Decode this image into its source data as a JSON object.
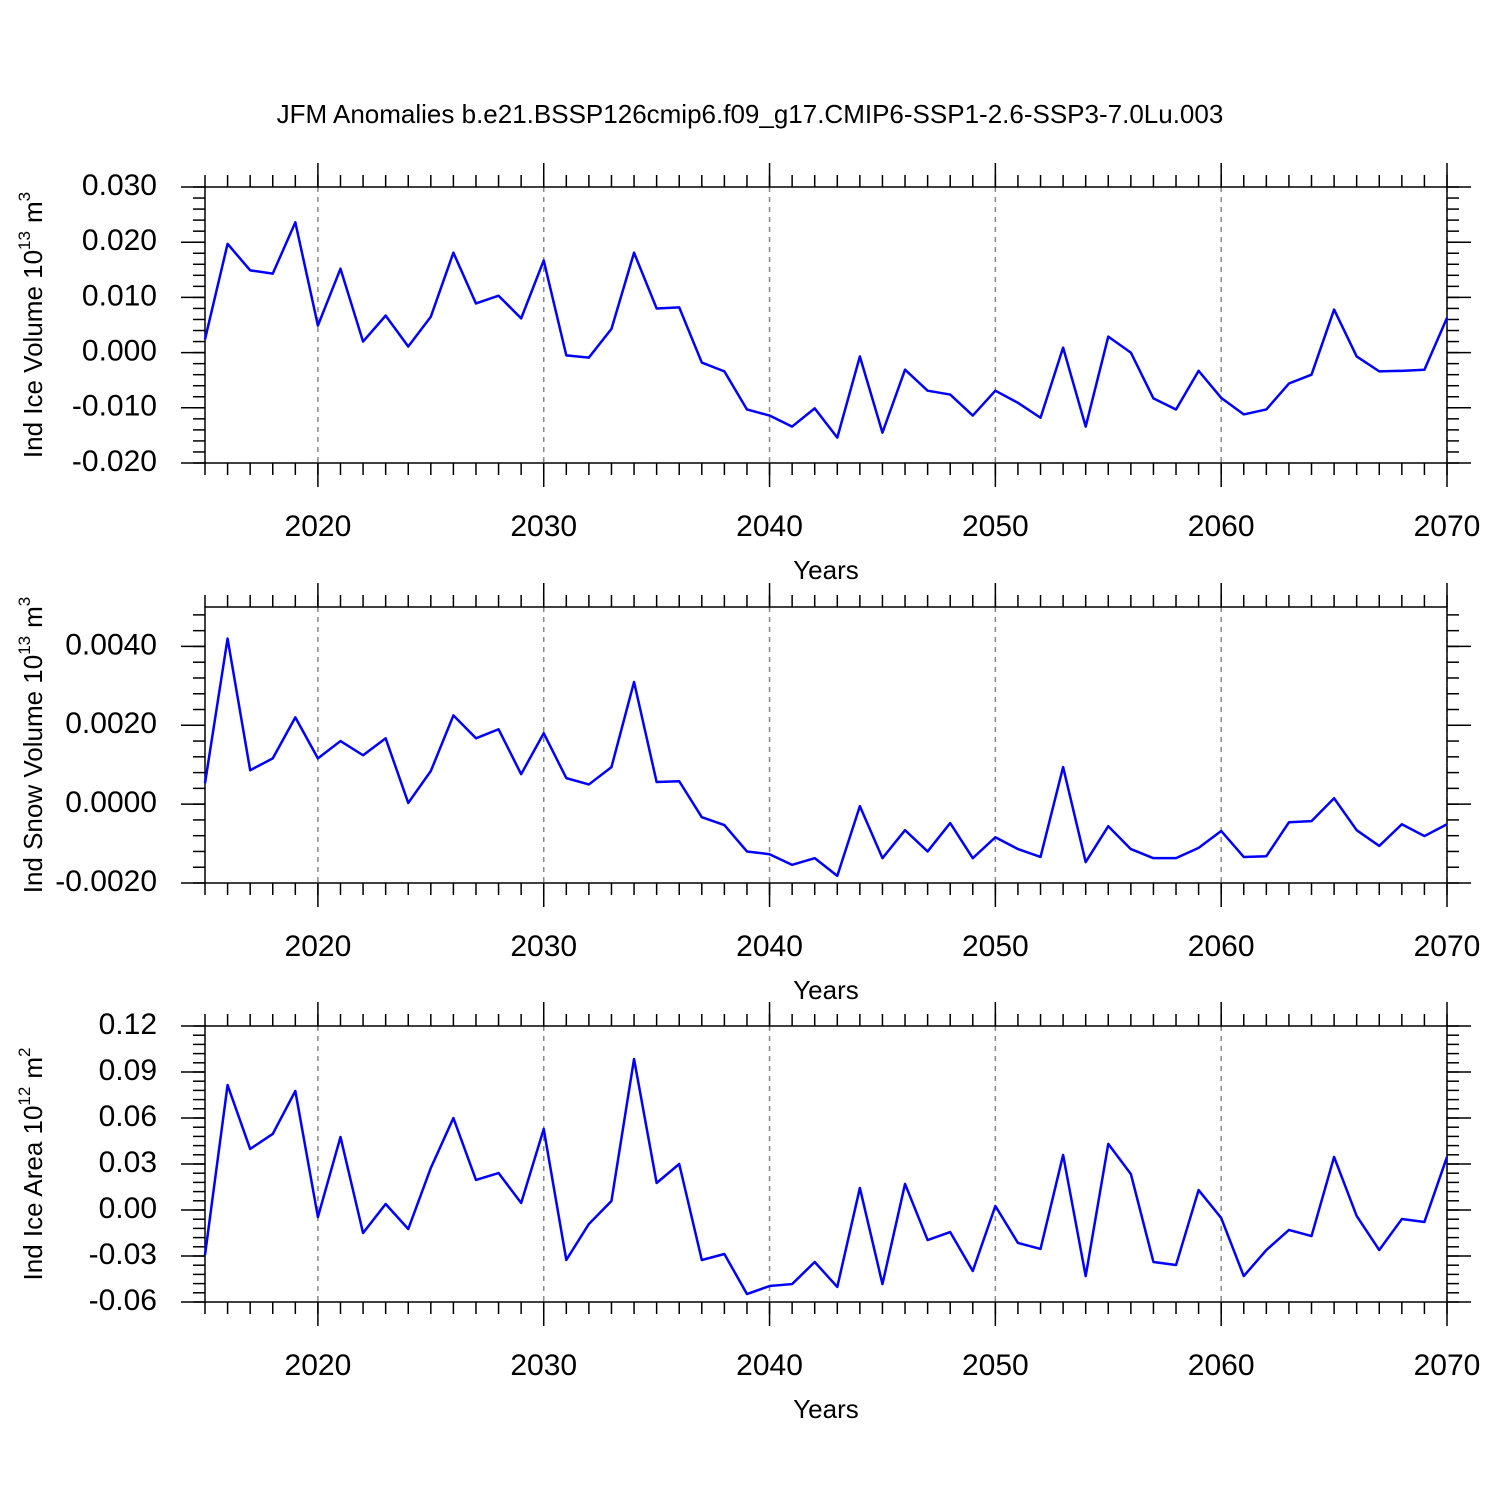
{
  "chart_data": [
    {
      "type": "line",
      "title": "JFM Anomalies b.e21.BSSP126cmip6.f09_g17.CMIP6-SSP1-2.6-SSP3-7.0Lu.003",
      "xlabel": "Years",
      "ylabel": [
        "Ind Ice Volume 10",
        "13",
        "m",
        "3"
      ],
      "x": [
        2015,
        2016,
        2017,
        2018,
        2019,
        2020,
        2021,
        2022,
        2023,
        2024,
        2025,
        2026,
        2027,
        2028,
        2029,
        2030,
        2031,
        2032,
        2033,
        2034,
        2035,
        2036,
        2037,
        2038,
        2039,
        2040,
        2041,
        2042,
        2043,
        2044,
        2045,
        2046,
        2047,
        2048,
        2049,
        2050,
        2051,
        2052,
        2053,
        2054,
        2055,
        2056,
        2057,
        2058,
        2059,
        2060,
        2061,
        2062,
        2063,
        2064,
        2065,
        2066,
        2067,
        2068,
        2069,
        2070
      ],
      "series": [
        {
          "color": "#0000ff",
          "values": [
            0.0024,
            0.0197,
            0.0149,
            0.0143,
            0.0236,
            0.0049,
            0.0152,
            0.002,
            0.0067,
            0.0011,
            0.0065,
            0.0181,
            0.0089,
            0.0103,
            0.0062,
            0.0167,
            -0.0005,
            -0.0009,
            0.0043,
            0.0181,
            0.008,
            0.0082,
            -0.0018,
            -0.0034,
            -0.0103,
            -0.0114,
            -0.0134,
            -0.0101,
            -0.0154,
            -0.0007,
            -0.0145,
            -0.0031,
            -0.0069,
            -0.0076,
            -0.0114,
            -0.0069,
            -0.0091,
            -0.0118,
            0.0009,
            -0.0134,
            0.0029,
            0.0,
            -0.0083,
            -0.0103,
            -0.0033,
            -0.0082,
            -0.0112,
            -0.0103,
            -0.0056,
            -0.004,
            0.0078,
            -0.0007,
            -0.0034,
            -0.0033,
            -0.0031,
            0.0063
          ]
        }
      ],
      "xlim": [
        2015,
        2070
      ],
      "xticks": [
        2020,
        2030,
        2040,
        2050,
        2060,
        2070
      ],
      "ylim": [
        -0.02,
        0.03
      ],
      "yticks": [
        {
          "value": -0.02,
          "label": "-0.020"
        },
        {
          "value": -0.01,
          "label": "-0.010"
        },
        {
          "value": 0,
          "label": "0.000"
        },
        {
          "value": 0.01,
          "label": "0.010"
        },
        {
          "value": 0.02,
          "label": "0.020"
        },
        {
          "value": 0.03,
          "label": "0.030"
        }
      ],
      "grid": true
    },
    {
      "type": "line",
      "xlabel": "Years",
      "ylabel": [
        "Ind Snow Volume 10",
        "13",
        "m",
        "3"
      ],
      "x": [
        2015,
        2016,
        2017,
        2018,
        2019,
        2020,
        2021,
        2022,
        2023,
        2024,
        2025,
        2026,
        2027,
        2028,
        2029,
        2030,
        2031,
        2032,
        2033,
        2034,
        2035,
        2036,
        2037,
        2038,
        2039,
        2040,
        2041,
        2042,
        2043,
        2044,
        2045,
        2046,
        2047,
        2048,
        2049,
        2050,
        2051,
        2052,
        2053,
        2054,
        2055,
        2056,
        2057,
        2058,
        2059,
        2060,
        2061,
        2062,
        2063,
        2064,
        2065,
        2066,
        2067,
        2068,
        2069,
        2070
      ],
      "series": [
        {
          "color": "#0000ff",
          "values": [
            0.00053,
            0.0042,
            0.00086,
            0.00116,
            0.0022,
            0.00116,
            0.0016,
            0.00124,
            0.00167,
            3e-05,
            0.00084,
            0.00225,
            0.00167,
            0.0019,
            0.00076,
            0.0018,
            0.00066,
            0.0005,
            0.00094,
            0.0031,
            0.00056,
            0.00058,
            -0.00033,
            -0.00053,
            -0.0012,
            -0.00127,
            -0.00154,
            -0.00137,
            -0.00182,
            -5e-05,
            -0.00137,
            -0.00066,
            -0.0012,
            -0.00048,
            -0.00137,
            -0.00084,
            -0.00114,
            -0.00134,
            0.00094,
            -0.00147,
            -0.00056,
            -0.00114,
            -0.00137,
            -0.00137,
            -0.00111,
            -0.00068,
            -0.00134,
            -0.00132,
            -0.00046,
            -0.00043,
            0.00015,
            -0.00066,
            -0.00106,
            -0.00051,
            -0.00081,
            -0.00051
          ]
        }
      ],
      "xlim": [
        2015,
        2070
      ],
      "xticks": [
        2020,
        2030,
        2040,
        2050,
        2060,
        2070
      ],
      "ylim": [
        -0.002,
        0.005
      ],
      "yticks": [
        {
          "value": -0.002,
          "label": "-0.0020"
        },
        {
          "value": 0,
          "label": "0.0000"
        },
        {
          "value": 0.002,
          "label": "0.0020"
        },
        {
          "value": 0.004,
          "label": "0.0040"
        }
      ],
      "grid": true
    },
    {
      "type": "line",
      "xlabel": "Years",
      "ylabel": [
        "Ind Ice Area 10",
        "12",
        "m",
        "2"
      ],
      "x": [
        2015,
        2016,
        2017,
        2018,
        2019,
        2020,
        2021,
        2022,
        2023,
        2024,
        2025,
        2026,
        2027,
        2028,
        2029,
        2030,
        2031,
        2032,
        2033,
        2034,
        2035,
        2036,
        2037,
        2038,
        2039,
        2040,
        2041,
        2042,
        2043,
        2044,
        2045,
        2046,
        2047,
        2048,
        2049,
        2050,
        2051,
        2052,
        2053,
        2054,
        2055,
        2056,
        2057,
        2058,
        2059,
        2060,
        2061,
        2062,
        2063,
        2064,
        2065,
        2066,
        2067,
        2068,
        2069,
        2070
      ],
      "series": [
        {
          "color": "#0000ff",
          "values": [
            -0.0294,
            0.0815,
            0.0398,
            0.0496,
            0.0776,
            -0.0046,
            0.0476,
            -0.015,
            0.0039,
            -0.0124,
            0.0274,
            0.06,
            0.0196,
            0.0241,
            0.0046,
            0.0528,
            -0.0326,
            -0.0091,
            0.0059,
            0.0985,
            0.0176,
            0.03,
            -0.0326,
            -0.0287,
            -0.0548,
            -0.0496,
            -0.0483,
            -0.0339,
            -0.0502,
            0.0144,
            -0.0483,
            0.017,
            -0.0196,
            -0.0144,
            -0.0398,
            0.0026,
            -0.0215,
            -0.0254,
            0.0359,
            -0.0431,
            0.0431,
            0.0235,
            -0.0339,
            -0.0359,
            0.013,
            -0.0052,
            -0.0431,
            -0.0261,
            -0.013,
            -0.017,
            0.0346,
            -0.0039,
            -0.0261,
            -0.0059,
            -0.0078,
            0.0346
          ]
        }
      ],
      "xlim": [
        2015,
        2070
      ],
      "xticks": [
        2020,
        2030,
        2040,
        2050,
        2060,
        2070
      ],
      "ylim": [
        -0.06,
        0.12
      ],
      "yticks": [
        {
          "value": -0.06,
          "label": "-0.06"
        },
        {
          "value": -0.03,
          "label": "-0.03"
        },
        {
          "value": 0,
          "label": "0.00"
        },
        {
          "value": 0.03,
          "label": "0.03"
        },
        {
          "value": 0.06,
          "label": "0.06"
        },
        {
          "value": 0.09,
          "label": "0.09"
        },
        {
          "value": 0.12,
          "label": "0.12"
        }
      ],
      "grid": true
    }
  ]
}
